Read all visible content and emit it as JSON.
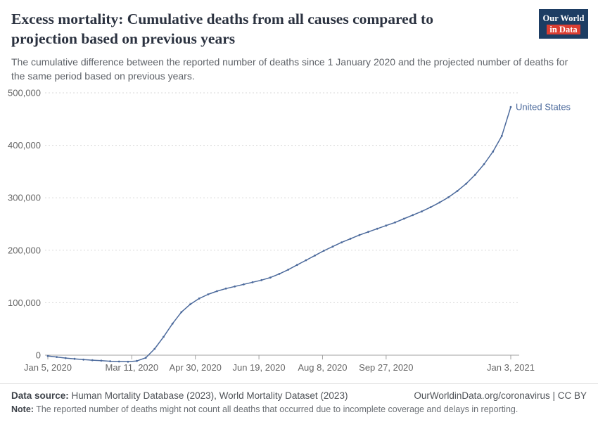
{
  "header": {
    "title": "Excess mortality: Cumulative deaths from all causes compared to projection based on previous years",
    "subtitle": "The cumulative difference between the reported number of deaths since 1 January 2020 and the projected number of deaths for the same period based on previous years.",
    "logo": {
      "line1": "Our World",
      "line2": "in Data"
    }
  },
  "chart_data": {
    "type": "line",
    "title": "Excess mortality: Cumulative deaths from all causes compared to projection based on previous years",
    "xlabel": "",
    "ylabel": "",
    "x_start_date": "Jan 5, 2020",
    "x_end_date": "Jan 3, 2021",
    "interval_days": 7,
    "xlim_days": [
      0,
      364
    ],
    "ylim": [
      -20000,
      500000
    ],
    "y_ticks": [
      0,
      100000,
      200000,
      300000,
      400000,
      500000
    ],
    "x_ticks": [
      {
        "label": "Jan 5, 2020",
        "day": 0
      },
      {
        "label": "Mar 11, 2020",
        "day": 66
      },
      {
        "label": "Apr 30, 2020",
        "day": 116
      },
      {
        "label": "Jun 19, 2020",
        "day": 166
      },
      {
        "label": "Aug 8, 2020",
        "day": 216
      },
      {
        "label": "Sep 27, 2020",
        "day": 266
      },
      {
        "label": "Jan 3, 2021",
        "day": 364
      }
    ],
    "grid": "dotted-horizontal",
    "legend": "inline-end-label",
    "series": [
      {
        "name": "United States",
        "color": "#4C6A9C",
        "values": [
          -1500,
          -3500,
          -5500,
          -7000,
          -8500,
          -9500,
          -10500,
          -11500,
          -12000,
          -12500,
          -11000,
          -5000,
          12000,
          35000,
          60000,
          82000,
          97000,
          108000,
          116000,
          122000,
          127000,
          131000,
          135000,
          139000,
          143000,
          148000,
          155000,
          163000,
          172000,
          181000,
          190000,
          199000,
          207000,
          215000,
          222000,
          229000,
          235000,
          241000,
          247000,
          253000,
          260000,
          267000,
          274000,
          282000,
          291000,
          301000,
          313000,
          327000,
          344000,
          364000,
          388000,
          418000,
          473000
        ]
      }
    ]
  },
  "footer": {
    "datasource_label": "Data source:",
    "datasource": " Human Mortality Database (2023), World Mortality Dataset (2023)",
    "link": "OurWorldinData.org/coronavirus | CC BY",
    "note_label": "Note:",
    "note": " The reported number of deaths might not count all deaths that occurred due to incomplete coverage and delays in reporting."
  },
  "colors": {
    "title": "#2b3240",
    "subtitle": "#5f6369",
    "line": "#4C6A9C",
    "gridline": "#d8d8d8",
    "axis": "#a1a1a1",
    "tick_label": "#666666",
    "logo_bg": "#1d3d63",
    "logo_red": "#dc3e32"
  }
}
